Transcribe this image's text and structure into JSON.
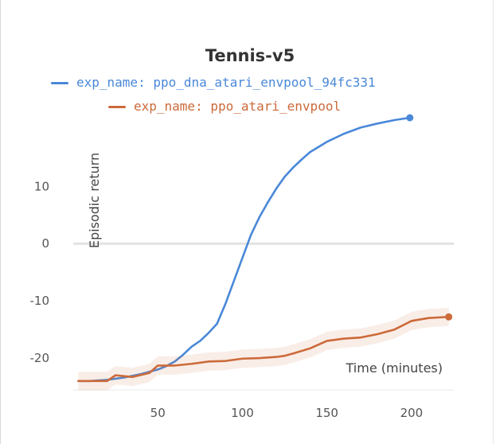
{
  "chart_data": {
    "type": "line",
    "title": "Tennis-v5",
    "xlabel": "Time (minutes)",
    "ylabel": "Episodic return",
    "xlim": [
      0,
      225
    ],
    "ylim": [
      -25,
      22
    ],
    "xticks": [
      50,
      100,
      150,
      200
    ],
    "yticks": [
      10,
      0,
      -10,
      -20
    ],
    "grid": "zero-line only",
    "legend": "top",
    "series": [
      {
        "name": "exp_name: ppo_dna_atari_envpool_94fc331",
        "color": "#4a88d8",
        "x": [
          3,
          10,
          20,
          30,
          40,
          50,
          55,
          60,
          65,
          70,
          75,
          80,
          85,
          90,
          95,
          100,
          105,
          110,
          115,
          120,
          125,
          130,
          135,
          140,
          150,
          160,
          170,
          180,
          190,
          199
        ],
        "y": [
          -24,
          -24,
          -23.8,
          -23.4,
          -22.8,
          -22,
          -21.4,
          -20.6,
          -19.4,
          -18,
          -17,
          -15.6,
          -14,
          -10.5,
          -6.5,
          -2.5,
          1.5,
          4.6,
          7.2,
          9.6,
          11.7,
          13.3,
          14.7,
          16,
          17.8,
          19.2,
          20.3,
          21,
          21.6,
          22
        ]
      },
      {
        "name": "exp_name: ppo_atari_envpool",
        "color": "#cc6a3a",
        "x": [
          3,
          10,
          20,
          25,
          35,
          45,
          50,
          60,
          70,
          80,
          90,
          100,
          110,
          120,
          125,
          130,
          140,
          150,
          160,
          170,
          180,
          190,
          200,
          210,
          222
        ],
        "y": [
          -24,
          -24,
          -24,
          -23,
          -23.3,
          -22.6,
          -21.3,
          -21.3,
          -21,
          -20.6,
          -20.5,
          -20.1,
          -20,
          -19.8,
          -19.6,
          -19.2,
          -18.3,
          -17,
          -16.6,
          -16.4,
          -15.8,
          -15,
          -13.5,
          -13,
          -12.8
        ],
        "band": 1.6
      }
    ]
  }
}
